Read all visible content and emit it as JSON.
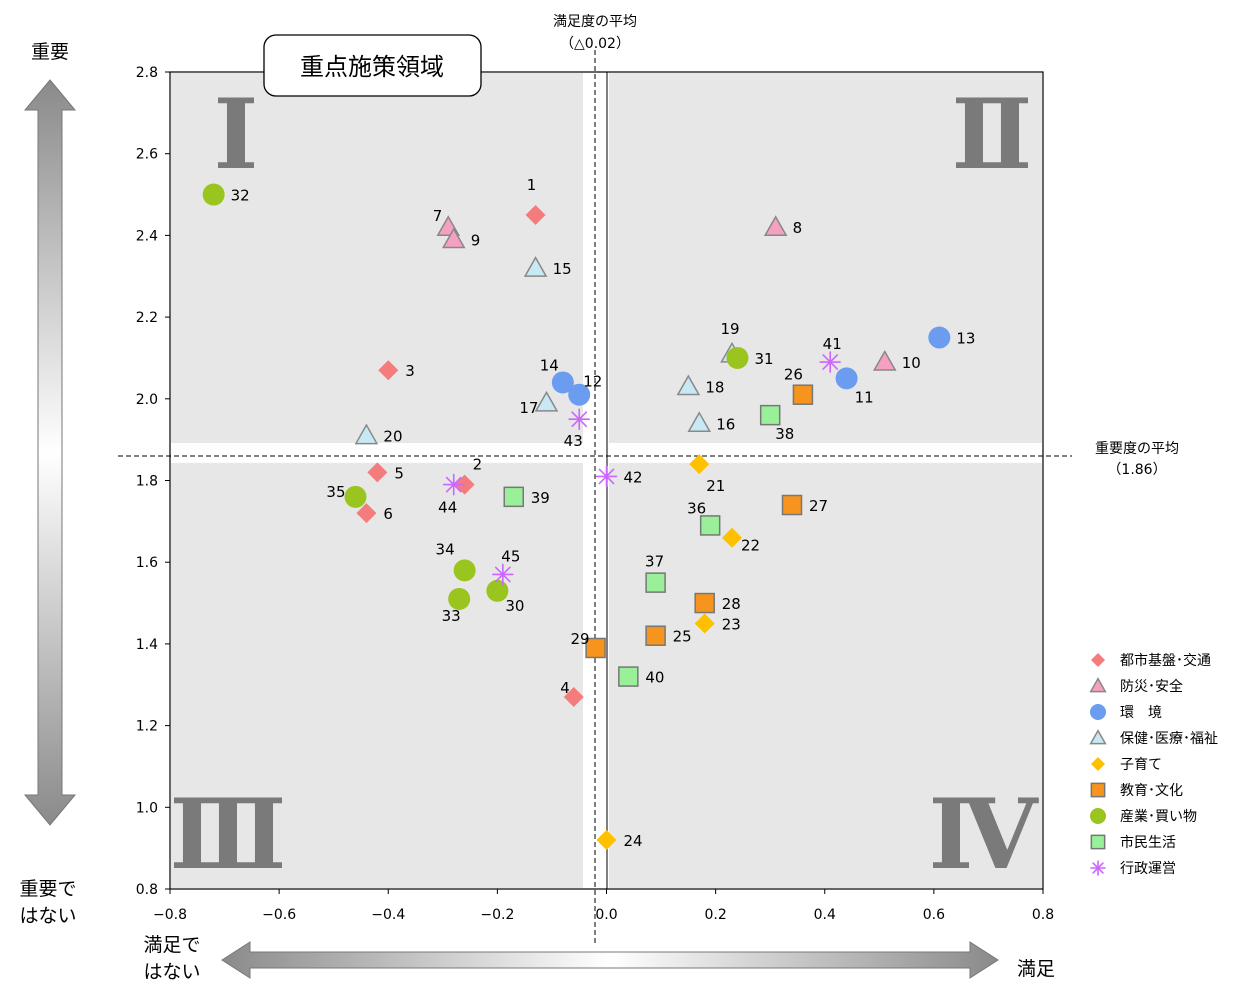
{
  "chart_data": {
    "type": "scatter",
    "xlim": [
      -0.8,
      0.8
    ],
    "ylim": [
      0.8,
      2.8
    ],
    "x_ticks": [
      "−0.8",
      "−0.6",
      "−0.4",
      "−0.2",
      "0.0",
      "0.2",
      "0.4",
      "0.6",
      "0.8"
    ],
    "y_ticks": [
      "0.8",
      "1.0",
      "1.2",
      "1.4",
      "1.6",
      "1.8",
      "2.0",
      "2.2",
      "2.4",
      "2.6",
      "2.8"
    ],
    "x_tick_values": [
      -0.8,
      -0.6,
      -0.4,
      -0.2,
      0.0,
      0.2,
      0.4,
      0.6,
      0.8
    ],
    "y_tick_values": [
      0.8,
      1.0,
      1.2,
      1.4,
      1.6,
      1.8,
      2.0,
      2.2,
      2.4,
      2.6,
      2.8
    ],
    "grid": false,
    "legend_position": "right",
    "callout": "重点施策領域",
    "quadrants": [
      "Ⅰ",
      "Ⅱ",
      "Ⅲ",
      "Ⅳ"
    ],
    "satisfaction_avg": {
      "label": "満足度の平均",
      "value_text": "（△0.02）",
      "x": -0.02
    },
    "importance_avg": {
      "label": "重要度の平均",
      "value_text": "（1.86）",
      "y": 1.86
    },
    "axis_titles": {
      "important": "重要",
      "not_important_1": "重要で",
      "not_important_2": "はない",
      "satisfied": "満足",
      "not_satisfied_1": "満足で",
      "not_satisfied_2": "はない"
    },
    "series": [
      {
        "name": "都市基盤･交通",
        "marker": "diamond",
        "color": "#f47c7c",
        "points": [
          {
            "id": "1",
            "x": -0.13,
            "y": 2.45
          },
          {
            "id": "2",
            "x": -0.26,
            "y": 1.79
          },
          {
            "id": "3",
            "x": -0.4,
            "y": 2.07
          },
          {
            "id": "4",
            "x": -0.06,
            "y": 1.27
          },
          {
            "id": "5",
            "x": -0.42,
            "y": 1.82
          },
          {
            "id": "6",
            "x": -0.44,
            "y": 1.72
          }
        ]
      },
      {
        "name": "防災･安全",
        "marker": "triangle",
        "color": "#f5a0c0",
        "points": [
          {
            "id": "7",
            "x": -0.29,
            "y": 2.42
          },
          {
            "id": "8",
            "x": 0.31,
            "y": 2.42
          },
          {
            "id": "9",
            "x": -0.28,
            "y": 2.39
          },
          {
            "id": "10",
            "x": 0.51,
            "y": 2.09
          }
        ]
      },
      {
        "name": "環　境",
        "marker": "circle",
        "color": "#6b9cf0",
        "points": [
          {
            "id": "11",
            "x": 0.44,
            "y": 2.05
          },
          {
            "id": "12",
            "x": -0.05,
            "y": 2.01
          },
          {
            "id": "13",
            "x": 0.61,
            "y": 2.15
          },
          {
            "id": "14",
            "x": -0.08,
            "y": 2.04
          }
        ]
      },
      {
        "name": "保健･医療･福祉",
        "marker": "triangle",
        "color": "#c8e8f4",
        "points": [
          {
            "id": "15",
            "x": -0.13,
            "y": 2.32
          },
          {
            "id": "16",
            "x": 0.17,
            "y": 1.94
          },
          {
            "id": "17",
            "x": -0.11,
            "y": 1.99
          },
          {
            "id": "18",
            "x": 0.15,
            "y": 2.03
          },
          {
            "id": "19",
            "x": 0.23,
            "y": 2.11
          },
          {
            "id": "20",
            "x": -0.44,
            "y": 1.91
          }
        ]
      },
      {
        "name": "子育て",
        "marker": "diamond",
        "color": "#ffc000",
        "points": [
          {
            "id": "21",
            "x": 0.17,
            "y": 1.84
          },
          {
            "id": "22",
            "x": 0.23,
            "y": 1.66
          },
          {
            "id": "23",
            "x": 0.18,
            "y": 1.45
          },
          {
            "id": "24",
            "x": 0.0,
            "y": 0.92
          }
        ]
      },
      {
        "name": "教育･文化",
        "marker": "square",
        "color": "#f7941d",
        "points": [
          {
            "id": "25",
            "x": 0.09,
            "y": 1.42
          },
          {
            "id": "26",
            "x": 0.36,
            "y": 2.01
          },
          {
            "id": "27",
            "x": 0.34,
            "y": 1.74
          },
          {
            "id": "28",
            "x": 0.18,
            "y": 1.5
          },
          {
            "id": "29",
            "x": -0.02,
            "y": 1.39
          }
        ]
      },
      {
        "name": "産業･買い物",
        "marker": "circle",
        "color": "#99c51e",
        "points": [
          {
            "id": "30",
            "x": -0.2,
            "y": 1.53
          },
          {
            "id": "31",
            "x": 0.24,
            "y": 2.1
          },
          {
            "id": "32",
            "x": -0.72,
            "y": 2.5
          },
          {
            "id": "33",
            "x": -0.27,
            "y": 1.51
          },
          {
            "id": "34",
            "x": -0.26,
            "y": 1.58
          },
          {
            "id": "35",
            "x": -0.46,
            "y": 1.76
          }
        ]
      },
      {
        "name": "市民生活",
        "marker": "square",
        "color": "#99f099",
        "points": [
          {
            "id": "36",
            "x": 0.19,
            "y": 1.69
          },
          {
            "id": "37",
            "x": 0.09,
            "y": 1.55
          },
          {
            "id": "38",
            "x": 0.3,
            "y": 1.96
          },
          {
            "id": "39",
            "x": -0.17,
            "y": 1.76
          },
          {
            "id": "40",
            "x": 0.04,
            "y": 1.32
          }
        ]
      },
      {
        "name": "行政運営",
        "marker": "asterisk",
        "color": "#cc66ff",
        "points": [
          {
            "id": "41",
            "x": 0.41,
            "y": 2.09
          },
          {
            "id": "42",
            "x": 0.0,
            "y": 1.81
          },
          {
            "id": "43",
            "x": -0.05,
            "y": 1.95
          },
          {
            "id": "44",
            "x": -0.28,
            "y": 1.79
          },
          {
            "id": "45",
            "x": -0.19,
            "y": 1.57
          }
        ]
      }
    ]
  }
}
